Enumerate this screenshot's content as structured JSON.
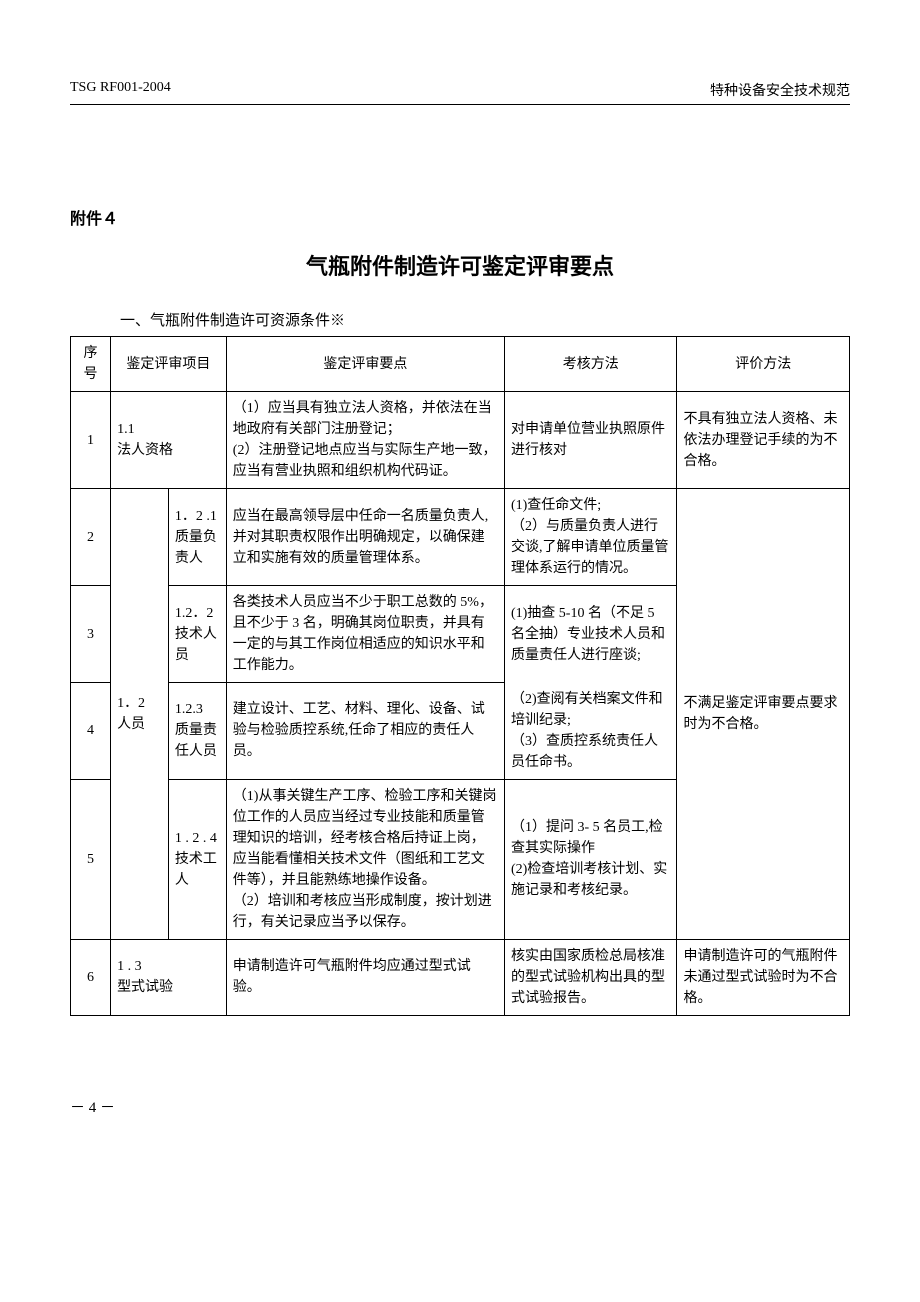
{
  "header": {
    "doc_code": "TSG RF001-2004",
    "doc_category": "特种设备安全技术规范"
  },
  "attachment_label": "附件４",
  "main_title": "气瓶附件制造许可鉴定评审要点",
  "section_title": "一、气瓶附件制造许可资源条件※",
  "table": {
    "headers": {
      "seq": "序号",
      "item": "鉴定评审项目",
      "points": "鉴定评审要点",
      "method": "考核方法",
      "eval": "评价方法"
    },
    "rows": [
      {
        "seq": "1",
        "item_full": "1.1\n法人资格",
        "points": "（1）应当具有独立法人资格，并依法在当地政府有关部门注册登记；\n(2）注册登记地点应当与实际生产地一致，应当有营业执照和组织机构代码证。",
        "method": "对申请单位营业执照原件进行核对",
        "eval": "不具有独立法人资格、未依法办理登记手续的为不合格。"
      },
      {
        "seq": "2",
        "item_a": "1．2\n人员",
        "item_b": "1．2 .1\n质量负责人",
        "points": "应当在最高领导层中任命一名质量负责人,并对其职责权限作出明确规定，以确保建立和实施有效的质量管理体系。",
        "method": "(1)查任命文件;\n（2）与质量负责人进行交谈,了解申请单位质量管理体系运行的情况。",
        "eval": "不满足鉴定评审要点要求时为不合格。"
      },
      {
        "seq": "3",
        "item_b": "1.2．2\n技术人员",
        "points": "各类技术人员应当不少于职工总数的 5%，且不少于 3 名，明确其岗位职责，并具有一定的与其工作岗位相适应的知识水平和工作能力。",
        "method_a": "(1)抽查 5-10 名（不足 5 名全抽）专业技术人员和质量责任人进行座谈;",
        "method_b": "（2)查阅有关档案文件和培训纪录;\n（3）查质控系统责任人员任命书。"
      },
      {
        "seq": "4",
        "item_b": "1.2.3\n质量责任人员",
        "points": "建立设计、工艺、材料、理化、设备、试验与检验质控系统,任命了相应的责任人员。"
      },
      {
        "seq": "5",
        "item_b": "1 . 2 . 4\n技术工人",
        "points": "（1)从事关键生产工序、检验工序和关键岗位工作的人员应当经过专业技能和质量管理知识的培训，经考核合格后持证上岗，应当能看懂相关技术文件（图纸和工艺文件等），并且能熟练地操作设备。\n（2）培训和考核应当形成制度，按计划进行，有关记录应当予以保存。",
        "method": "（1）提问 3- 5 名员工,检查其实际操作\n(2)检查培训考核计划、实施记录和考核纪录。"
      },
      {
        "seq": "6",
        "item_full": "1 . 3\n型式试验",
        "points": "申请制造许可气瓶附件均应通过型式试验。",
        "method": "核实由国家质检总局核准的型式试验机构出具的型式试验报告。",
        "eval": "申请制造许可的气瓶附件未通过型式试验时为不合格。"
      }
    ]
  },
  "footer": {
    "page_number": "－ 4 －"
  }
}
